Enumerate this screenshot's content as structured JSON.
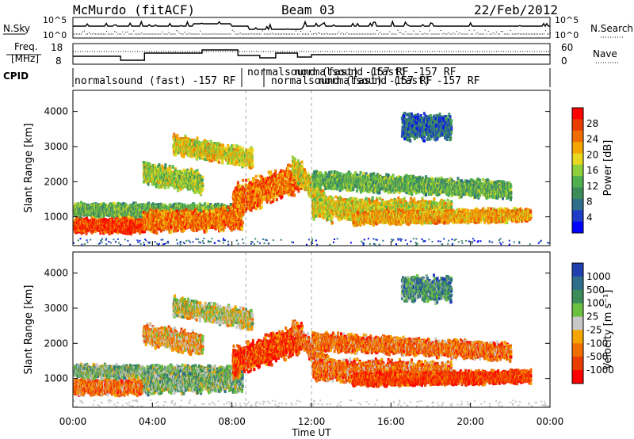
{
  "header": {
    "site": "McMurdo (fitACF)",
    "beam": "Beam 03",
    "date": "22/Feb/2012"
  },
  "top_panel": {
    "left_label": "N.Sky",
    "right_label": "N.Search",
    "y_ticks_left": [
      "10^5",
      "10^0"
    ],
    "y_ticks_right": [
      "10^5",
      "10^0"
    ]
  },
  "freq_panel": {
    "left_label_1": "Freq.",
    "left_label_2": "[MHz]",
    "right_label": "Nave",
    "y_ticks_left": [
      "18",
      "8"
    ],
    "y_ticks_right": [
      "60",
      "0"
    ]
  },
  "cpid": {
    "label": "CPID",
    "entries": [
      "normalsound (fast) -157 RF",
      "normalsound (fast) -157 RF",
      "normalsound (fast) -157 RF",
      "normalsound (fast) -157 RF",
      "normalsound (fast) -157 RF"
    ]
  },
  "chart_data": [
    {
      "type": "heatmap",
      "name": "power",
      "ylabel": "Slant Range [km]",
      "yticks": [
        1000,
        2000,
        3000,
        4000
      ],
      "ylim": [
        180,
        4600
      ],
      "colorbar_label": "Power [dB]",
      "colorbar_ticks": [
        "28",
        "24",
        "20",
        "16",
        "12",
        "8",
        "4"
      ],
      "colors": [
        "#0000ff",
        "#1e3cc8",
        "#2f6e8a",
        "#3c8c5a",
        "#4fb04f",
        "#8fcf3c",
        "#e8d820",
        "#f5a500",
        "#f06e00",
        "#e83c00",
        "#ff0000"
      ]
    },
    {
      "type": "heatmap",
      "name": "velocity",
      "ylabel": "Slant Range [km]",
      "yticks": [
        1000,
        2000,
        3000,
        4000
      ],
      "ylim": [
        180,
        4600
      ],
      "colorbar_label": "Velocity [m s⁻¹]",
      "colorbar_ticks": [
        "1000",
        "500",
        "100",
        "25",
        "-25",
        "-100",
        "-500",
        "-1000"
      ],
      "colors": [
        "#2040b0",
        "#2f6e8a",
        "#3c8c5a",
        "#6cc040",
        "#c8c8c8",
        "#f5a500",
        "#f06e00",
        "#e83c00",
        "#ff0000"
      ]
    }
  ],
  "x_axis": {
    "label": "Time UT",
    "ticks": [
      "00:00",
      "04:00",
      "08:00",
      "12:00",
      "16:00",
      "20:00",
      "00:00"
    ]
  }
}
